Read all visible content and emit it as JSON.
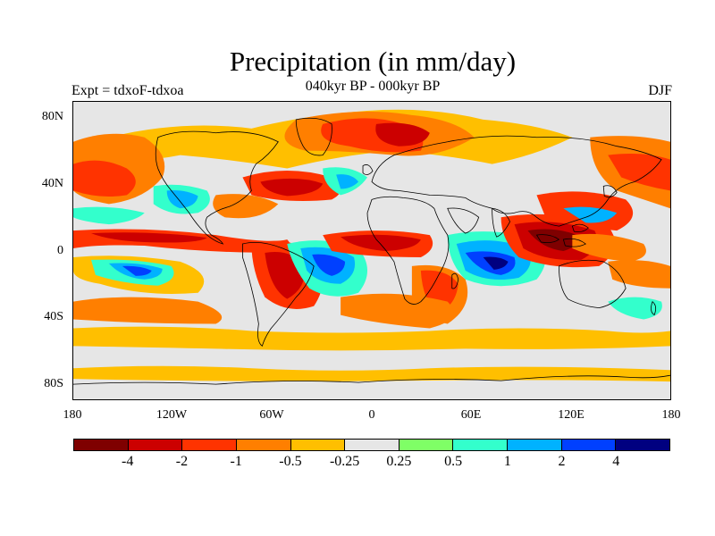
{
  "title": "Precipitation (in mm/day)",
  "subtitle_left": "Expt = tdxoF-tdxoa",
  "subtitle_center": "040kyr BP - 000kyr BP",
  "subtitle_right": "DJF",
  "y_labels": [
    "80N",
    "40N",
    "0",
    "40S",
    "80S"
  ],
  "x_labels": [
    "180",
    "120W",
    "60W",
    "0",
    "60E",
    "120E",
    "180"
  ],
  "colorbar_colors": [
    "#7f0000",
    "#cc0000",
    "#ff3300",
    "#ff7f00",
    "#ffbf00",
    "#e6e6e6",
    "#7fff66",
    "#33ffcc",
    "#00b2ff",
    "#0040ff",
    "#000080"
  ],
  "colorbar_labels": [
    "-4",
    "-2",
    "-1",
    "-0.5",
    "-0.25",
    "0.25",
    "0.5",
    "1",
    "2",
    "4"
  ],
  "colors": {
    "background": "#ffffff",
    "map_background": "#e6e6e6",
    "coastline": "#000000"
  }
}
